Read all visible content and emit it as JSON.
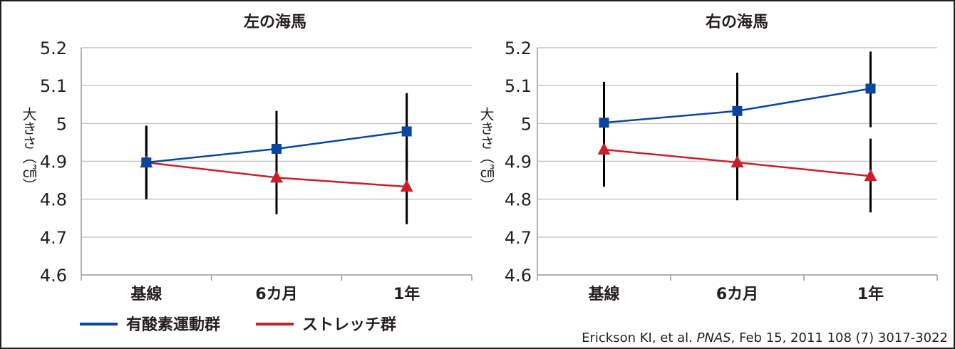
{
  "chart_data": [
    {
      "type": "line",
      "title": "左の海馬",
      "ylabel": "大きさ（㎤）",
      "categories": [
        "基線",
        "6カ月",
        "1年"
      ],
      "ylim": [
        4.6,
        5.2
      ],
      "yticks": [
        "4.6",
        "4.7",
        "4.8",
        "4.9",
        "5",
        "5.1",
        "5.2"
      ],
      "grid": true,
      "series": [
        {
          "name": "有酸素運動群",
          "color": "#0a46a0",
          "marker": "square",
          "values": [
            4.897,
            4.933,
            4.979
          ],
          "error_low": [
            4.8,
            4.833,
            4.878
          ],
          "error_high": [
            4.994,
            5.033,
            5.08
          ]
        },
        {
          "name": "ストレッチ群",
          "color": "#c8202b",
          "marker": "triangle",
          "values": [
            4.897,
            4.857,
            4.833
          ],
          "error_low": [
            4.8,
            4.76,
            4.734
          ],
          "error_high": [
            4.994,
            4.955,
            4.932
          ]
        }
      ]
    },
    {
      "type": "line",
      "title": "右の海馬",
      "ylabel": "大きさ（㎤）",
      "categories": [
        "基線",
        "6カ月",
        "1年"
      ],
      "ylim": [
        4.6,
        5.2
      ],
      "yticks": [
        "4.6",
        "4.7",
        "4.8",
        "4.9",
        "5",
        "5.1",
        "5.2"
      ],
      "grid": true,
      "series": [
        {
          "name": "有酸素運動群",
          "color": "#0a46a0",
          "marker": "square",
          "values": [
            5.002,
            5.033,
            5.092
          ],
          "error_low": [
            4.902,
            4.933,
            4.99
          ],
          "error_high": [
            5.11,
            5.134,
            5.19
          ]
        },
        {
          "name": "ストレッチ群",
          "color": "#c8202b",
          "marker": "triangle",
          "values": [
            4.931,
            4.897,
            4.861
          ],
          "error_low": [
            4.833,
            4.797,
            4.765
          ],
          "error_high": [
            5.03,
            4.995,
            4.96
          ]
        }
      ]
    }
  ],
  "legend": {
    "position": "bottom-left",
    "items": [
      {
        "label": "有酸素運動群",
        "color": "#0a46a0"
      },
      {
        "label": "ストレッチ群",
        "color": "#c8202b"
      }
    ]
  },
  "citation": {
    "text_before": "Erickson KI, et al. ",
    "journal": "PNAS",
    "text_after": ", Feb 15, 2011 108 (7) 3017-3022"
  }
}
